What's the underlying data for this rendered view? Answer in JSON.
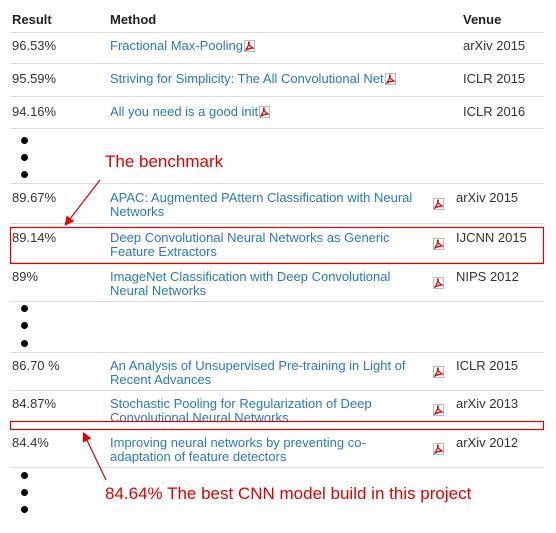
{
  "table": {
    "header": [
      "Result",
      "Method",
      "Venue"
    ],
    "groups": [
      [
        {
          "result": "96.53%",
          "method": "Fractional Max-Pooling",
          "venue": "arXiv 2015"
        },
        {
          "result": "95.59%",
          "method": "Striving for Simplicity: The All Convolutional Net",
          "venue": "ICLR 2015"
        },
        {
          "result": "94.16%",
          "method": "All you need is a good init",
          "venue": "ICLR 2016"
        }
      ],
      [
        {
          "result": "89.67%",
          "method": "APAC: Augmented PAttern Classification with Neural Networks",
          "venue": "arXiv 2015"
        },
        {
          "result": "89.14%",
          "method": "Deep Convolutional Neural Networks as Generic Feature Extractors",
          "venue": "IJCNN 2015"
        },
        {
          "result": "89%",
          "method": "ImageNet Classification with Deep Convolutional Neural Networks",
          "venue": "NIPS 2012"
        }
      ],
      [
        {
          "result": "86.70 %",
          "method": "An Analysis of Unsupervised Pre-training in Light of Recent Advances",
          "venue": "ICLR 2015"
        },
        {
          "result": "84.87%",
          "method": "Stochastic Pooling for Regularization of Deep Convolutional Neural Networks",
          "venue": "arXiv 2013"
        },
        {
          "result": "84.4%",
          "method": "Improving neural networks by preventing co-adaptation of feature detectors",
          "venue": "arXiv 2012"
        }
      ]
    ]
  },
  "annotations": {
    "benchmark": "The benchmark",
    "best": "84.64%  The best CNN model build in this project"
  }
}
